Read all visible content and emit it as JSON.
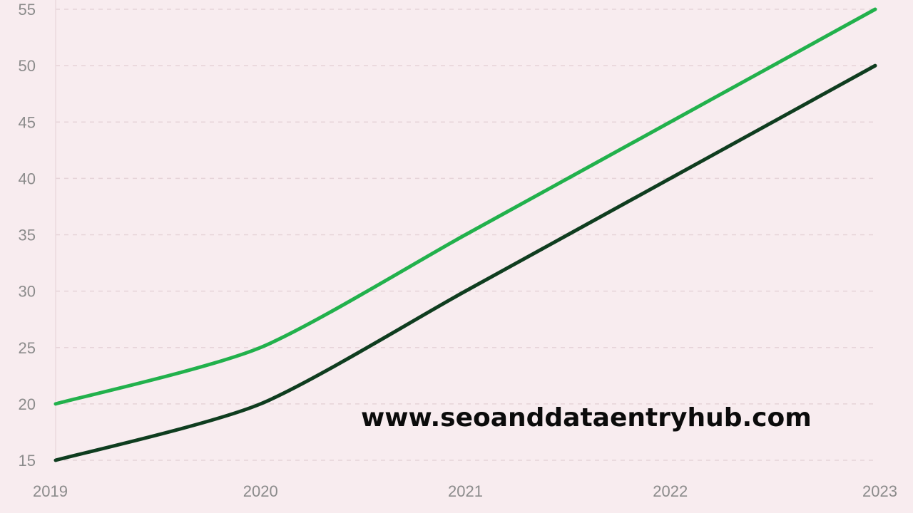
{
  "chart_data": {
    "type": "line",
    "x": [
      "2019",
      "2020",
      "2021",
      "2022",
      "2023"
    ],
    "series": [
      {
        "values": [
          20,
          25,
          35,
          45,
          55
        ],
        "color": "#22b14c"
      },
      {
        "values": [
          15,
          20,
          30,
          40,
          50
        ],
        "color": "#0f3d1f"
      }
    ],
    "ylim": [
      15,
      55
    ],
    "yticks": [
      15,
      20,
      25,
      30,
      35,
      40,
      45,
      50,
      55
    ],
    "grid": true,
    "grid_style": "dashed-horizontal",
    "background_color": "#f8ecef"
  },
  "watermark": "www.seoanddataentryhub.com"
}
